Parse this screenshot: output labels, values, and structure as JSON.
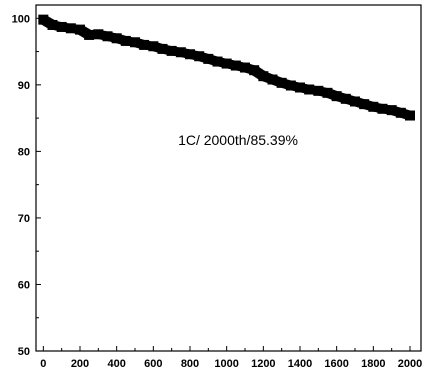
{
  "chart_data": {
    "type": "scatter",
    "title": "",
    "xlabel": "",
    "ylabel": "",
    "xlim": [
      -40,
      2060
    ],
    "ylim": [
      50,
      102
    ],
    "x_ticks": [
      0,
      200,
      400,
      600,
      800,
      1000,
      1200,
      1400,
      1600,
      1800,
      2000
    ],
    "y_ticks": [
      50,
      60,
      70,
      80,
      90,
      100
    ],
    "annotation": "1C/ 2000th/85.39%",
    "grid": false,
    "legend": "none",
    "marker_color": "#000000",
    "series": [
      {
        "x": [
          0,
          50,
          100,
          150,
          200,
          250,
          300,
          350,
          400,
          450,
          500,
          550,
          600,
          650,
          700,
          750,
          800,
          850,
          900,
          950,
          1000,
          1050,
          1100,
          1150,
          1200,
          1250,
          1300,
          1350,
          1400,
          1450,
          1500,
          1550,
          1600,
          1650,
          1700,
          1750,
          1800,
          1850,
          1900,
          1950,
          2000
        ],
        "values": [
          99.8,
          99.0,
          98.7,
          98.5,
          98.3,
          97.5,
          97.6,
          97.3,
          97.0,
          96.6,
          96.4,
          96.0,
          95.8,
          95.4,
          95.1,
          94.9,
          94.6,
          94.3,
          93.9,
          93.5,
          93.2,
          92.9,
          92.6,
          92.2,
          91.3,
          90.8,
          90.3,
          89.9,
          89.6,
          89.3,
          89.1,
          88.8,
          88.3,
          87.9,
          87.5,
          87.1,
          86.7,
          86.4,
          86.2,
          85.8,
          85.39
        ]
      }
    ]
  }
}
